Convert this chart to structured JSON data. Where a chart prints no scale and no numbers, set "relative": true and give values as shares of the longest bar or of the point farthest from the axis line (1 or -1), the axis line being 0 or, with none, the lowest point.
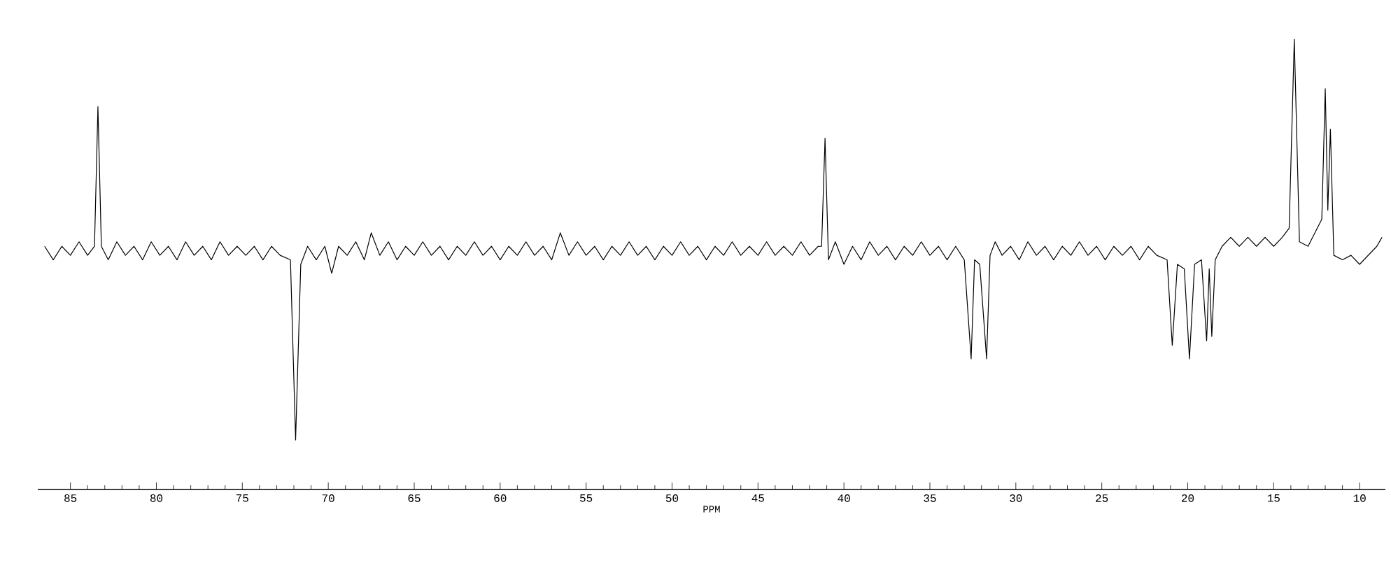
{
  "chart_data": {
    "type": "line",
    "relative": true,
    "xlabel": "PPM",
    "color": "#000000",
    "xlim": [
      86.9,
      8.5
    ],
    "xticks": [
      85,
      80,
      75,
      70,
      65,
      60,
      55,
      50,
      45,
      40,
      35,
      30,
      25,
      20,
      15,
      10
    ],
    "x": [
      86.5,
      86,
      85.5,
      85,
      84.5,
      84,
      83.6,
      83.4,
      83.2,
      82.8,
      82.3,
      81.8,
      81.3,
      80.8,
      80.3,
      79.8,
      79.3,
      78.8,
      78.3,
      77.8,
      77.3,
      76.8,
      76.3,
      75.8,
      75.3,
      74.8,
      74.3,
      73.8,
      73.3,
      72.8,
      72.2,
      71.9,
      71.6,
      71.2,
      70.7,
      70.2,
      69.8,
      69.4,
      68.9,
      68.4,
      67.9,
      67.5,
      67,
      66.5,
      66,
      65.5,
      65,
      64.5,
      64,
      63.5,
      63,
      62.5,
      62,
      61.5,
      61,
      60.5,
      60,
      59.5,
      59,
      58.5,
      58,
      57.5,
      57,
      56.5,
      56,
      55.5,
      55,
      54.5,
      54,
      53.5,
      53,
      52.5,
      52,
      51.5,
      51,
      50.5,
      50,
      49.5,
      49,
      48.5,
      48,
      47.5,
      47,
      46.5,
      46,
      45.5,
      45,
      44.5,
      44,
      43.5,
      43,
      42.5,
      42,
      41.5,
      41.3,
      41.1,
      40.9,
      40.5,
      40,
      39.5,
      39,
      38.5,
      38,
      37.5,
      37,
      36.5,
      36,
      35.5,
      35,
      34.5,
      34,
      33.5,
      33,
      32.6,
      32.4,
      32.1,
      31.7,
      31.5,
      31.2,
      30.8,
      30.3,
      29.8,
      29.3,
      28.8,
      28.3,
      27.8,
      27.3,
      26.8,
      26.3,
      25.8,
      25.3,
      24.8,
      24.3,
      23.8,
      23.3,
      22.8,
      22.3,
      21.8,
      21.2,
      20.9,
      20.6,
      20.2,
      19.9,
      19.6,
      19.2,
      18.9,
      18.75,
      18.6,
      18.4,
      18,
      17.5,
      17,
      16.5,
      16,
      15.5,
      15,
      14.5,
      14.1,
      13.8,
      13.5,
      13,
      12.6,
      12.2,
      12,
      11.85,
      11.7,
      11.5,
      11,
      10.5,
      10,
      9.5,
      9,
      8.7
    ],
    "values": [
      0.54,
      0.51,
      0.54,
      0.52,
      0.55,
      0.52,
      0.54,
      0.85,
      0.54,
      0.51,
      0.55,
      0.52,
      0.54,
      0.51,
      0.55,
      0.52,
      0.54,
      0.51,
      0.55,
      0.52,
      0.54,
      0.51,
      0.55,
      0.52,
      0.54,
      0.52,
      0.54,
      0.51,
      0.54,
      0.52,
      0.51,
      0.11,
      0.5,
      0.54,
      0.51,
      0.54,
      0.48,
      0.54,
      0.52,
      0.55,
      0.51,
      0.57,
      0.52,
      0.55,
      0.51,
      0.54,
      0.52,
      0.55,
      0.52,
      0.54,
      0.51,
      0.54,
      0.52,
      0.55,
      0.52,
      0.54,
      0.51,
      0.54,
      0.52,
      0.55,
      0.52,
      0.54,
      0.51,
      0.57,
      0.52,
      0.55,
      0.52,
      0.54,
      0.51,
      0.54,
      0.52,
      0.55,
      0.52,
      0.54,
      0.51,
      0.54,
      0.52,
      0.55,
      0.52,
      0.54,
      0.51,
      0.54,
      0.52,
      0.55,
      0.52,
      0.54,
      0.52,
      0.55,
      0.52,
      0.54,
      0.52,
      0.55,
      0.52,
      0.54,
      0.54,
      0.78,
      0.51,
      0.55,
      0.5,
      0.54,
      0.51,
      0.55,
      0.52,
      0.54,
      0.51,
      0.54,
      0.52,
      0.55,
      0.52,
      0.54,
      0.51,
      0.54,
      0.51,
      0.29,
      0.51,
      0.5,
      0.29,
      0.52,
      0.55,
      0.52,
      0.54,
      0.51,
      0.55,
      0.52,
      0.54,
      0.51,
      0.54,
      0.52,
      0.55,
      0.52,
      0.54,
      0.51,
      0.54,
      0.52,
      0.54,
      0.51,
      0.54,
      0.52,
      0.51,
      0.32,
      0.5,
      0.49,
      0.29,
      0.5,
      0.51,
      0.33,
      0.49,
      0.34,
      0.51,
      0.54,
      0.56,
      0.54,
      0.56,
      0.54,
      0.56,
      0.54,
      0.56,
      0.58,
      1.0,
      0.55,
      0.54,
      0.57,
      0.6,
      0.89,
      0.62,
      0.8,
      0.52,
      0.51,
      0.52,
      0.5,
      0.52,
      0.54,
      0.56
    ]
  }
}
